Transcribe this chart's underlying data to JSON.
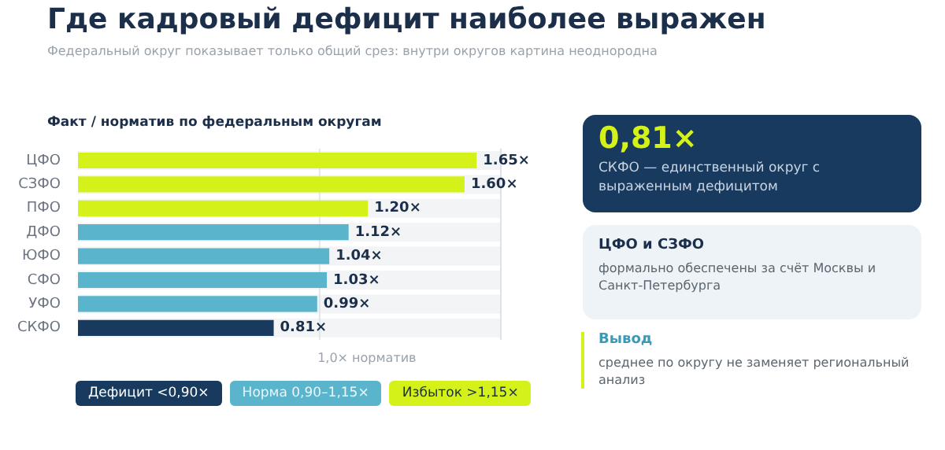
{
  "chart_data": {
    "type": "bar",
    "orientation": "horizontal",
    "stacked": true,
    "title": "Где кадровый дефицит наиболее выражен",
    "subtitle": "Федеральный округ показывает только общий срез: внутри округов картина неоднородна",
    "categories": [
      "ЦФО",
      "СЗФО",
      "ПФО",
      "ДФО",
      "ЮФО",
      "СФО",
      "УФО",
      "СКФО"
    ],
    "series": [
      {
        "name": "Дефицит <0,90×",
        "color": "#173a5e",
        "values": [
          null,
          null,
          null,
          null,
          null,
          null,
          null,
          0.81
        ],
        "value_labels": [
          null,
          null,
          null,
          null,
          null,
          null,
          null,
          "0.81×"
        ]
      },
      {
        "name": "Норма 0,90–1,15×",
        "color": "#5ab4cc",
        "values": [
          null,
          null,
          null,
          1.12,
          1.04,
          1.03,
          0.99,
          null
        ],
        "value_labels": [
          null,
          null,
          null,
          "1.12×",
          "1.04×",
          "1.03×",
          "0.99×",
          null
        ]
      },
      {
        "name": "Избыток >1,15×",
        "color": "#d4f21a",
        "values": [
          1.65,
          1.6,
          1.2,
          null,
          null,
          null,
          null,
          null
        ],
        "value_labels": [
          "1.65×",
          "1.60×",
          "1.20×",
          null,
          null,
          null,
          null,
          null
        ]
      }
    ],
    "xlim": [
      0,
      1.75
    ],
    "tick_labels": "y",
    "legend": "bottom",
    "ref_lines": [
      {
        "axis": "x",
        "value": 1.0,
        "label": "1,0× норматив",
        "color": "#e2e6ea"
      }
    ],
    "annotations": [
      "Факт / норматив по федеральным округам",
      "0,81×",
      "СКФО — единственный округ с выраженным дефицитом",
      "ЦФО и СЗФО",
      "формально обеспечены за счёт Москвы и Санкт-Петербурга",
      "Вывод",
      "среднее по округу не заменяет региональный анализ"
    ]
  }
}
